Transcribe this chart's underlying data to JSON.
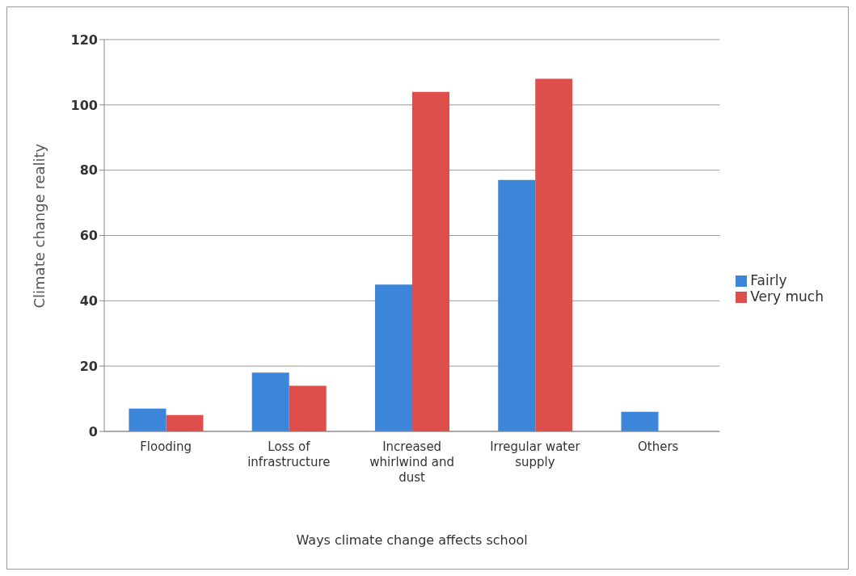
{
  "chart_data": {
    "type": "bar",
    "xlabel": "Ways climate change affects school",
    "ylabel": "Climate change reality",
    "categories": [
      "Flooding",
      "Loss of infrastructure",
      "Increased whirlwind and dust",
      "Irregular water supply",
      "Others"
    ],
    "series": [
      {
        "name": "Fairly",
        "color": "#3d85d8",
        "values": [
          7,
          18,
          45,
          77,
          6
        ]
      },
      {
        "name": "Very much",
        "color": "#dc4f4a",
        "values": [
          5,
          14,
          104,
          108,
          0
        ]
      }
    ],
    "ylim": [
      0,
      120
    ],
    "yticks": [
      0,
      20,
      40,
      60,
      80,
      100,
      120
    ],
    "grid": "y",
    "legend": "right"
  }
}
